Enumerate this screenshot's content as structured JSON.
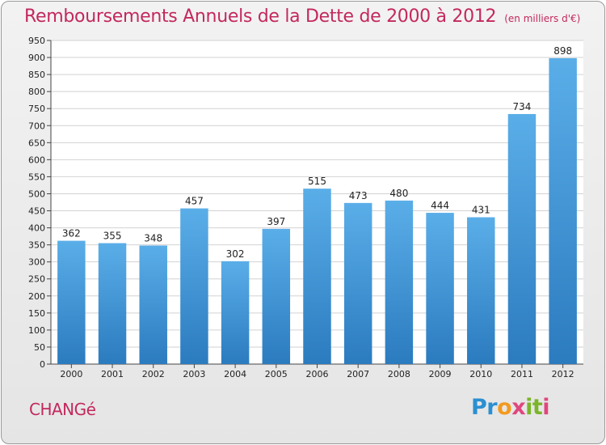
{
  "header": {
    "title": "Remboursements Annuels de la Dette de 2000 à 2012",
    "subtitle": "(en milliers d'€)"
  },
  "footer": {
    "commune": "CHANGé",
    "logo_text": "Proxiti"
  },
  "colors": {
    "title": "#c3285f",
    "bar_top": "#5aaee8",
    "bar_bottom": "#2b7bbf",
    "grid": "#d2d2d2"
  },
  "chart_data": {
    "type": "bar",
    "title": "Remboursements Annuels de la Dette de 2000 à 2012",
    "xlabel": "",
    "ylabel": "",
    "categories": [
      "2000",
      "2001",
      "2002",
      "2003",
      "2004",
      "2005",
      "2006",
      "2007",
      "2008",
      "2009",
      "2010",
      "2011",
      "2012"
    ],
    "values": [
      362,
      355,
      348,
      457,
      302,
      397,
      515,
      473,
      480,
      444,
      431,
      734,
      898
    ],
    "ylim": [
      0,
      950
    ],
    "ytick_step": 50,
    "grid": true,
    "data_labels": true
  }
}
